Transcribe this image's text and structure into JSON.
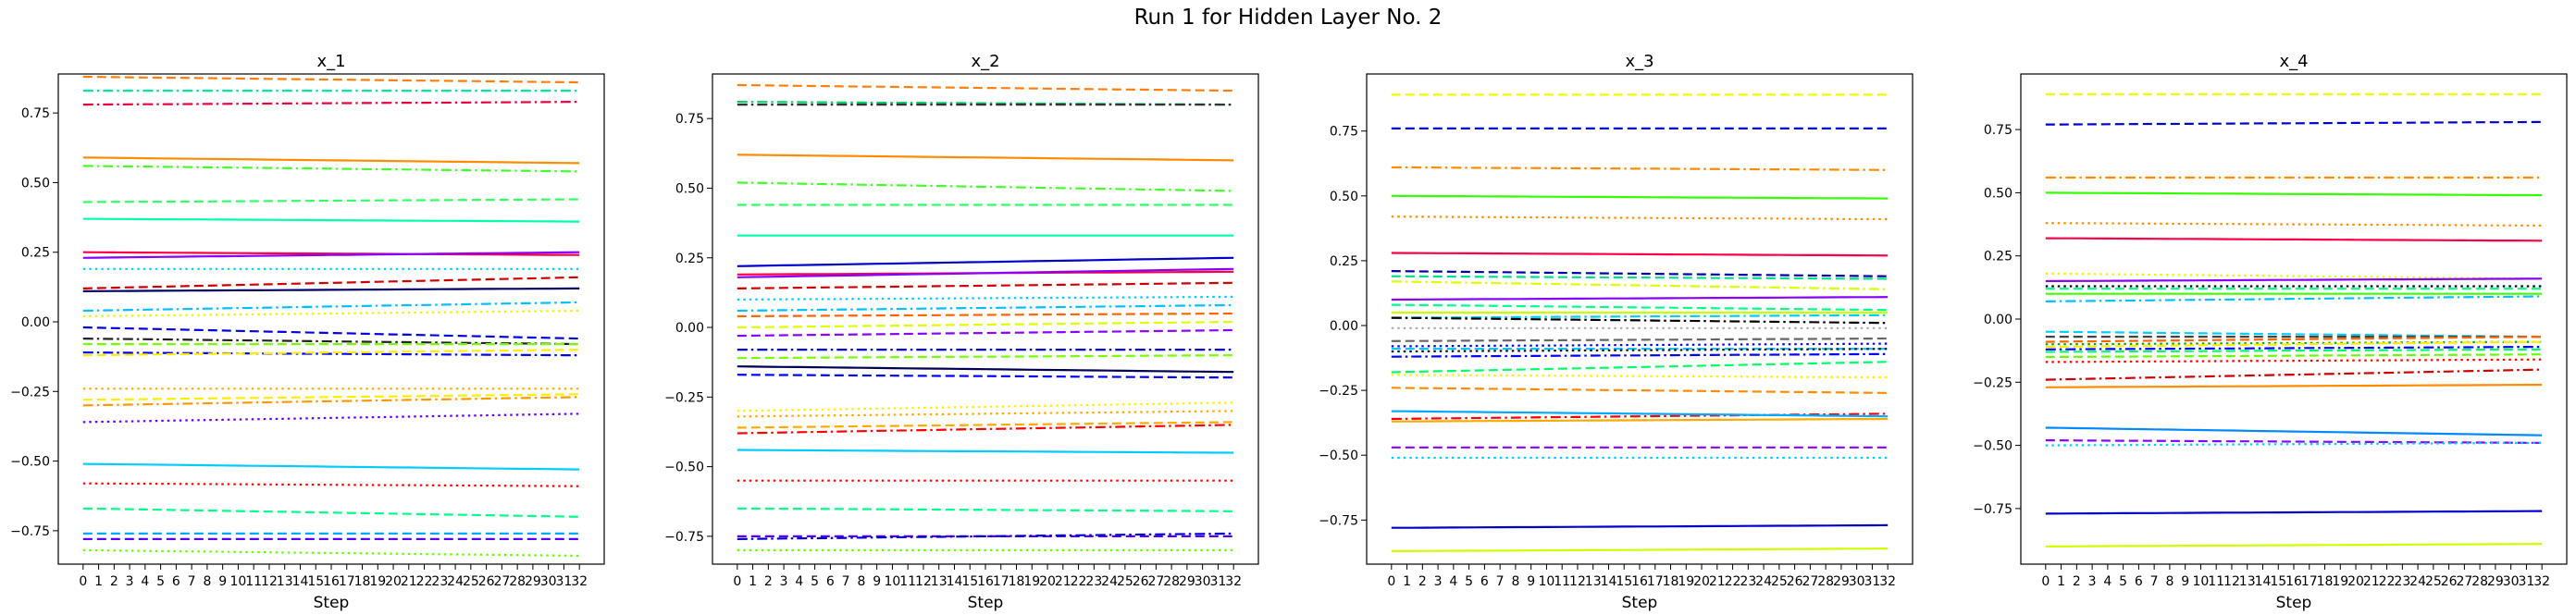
{
  "figure": {
    "title": "Run 1 for Hidden Layer No. 2"
  },
  "chart_data": [
    {
      "type": "line",
      "title": "x_1",
      "xlabel": "Step",
      "ylabel": "",
      "x": [
        0,
        1,
        2,
        3,
        4,
        5,
        6,
        7,
        8,
        9,
        10,
        11,
        12,
        13,
        14,
        15,
        16,
        17,
        18,
        19,
        20,
        21,
        22,
        23,
        24,
        25,
        26,
        27,
        28,
        29,
        30,
        31,
        32
      ],
      "xlim": [
        -1.6,
        33.6
      ],
      "ylim": [
        -0.87,
        0.89
      ],
      "yticks": [
        -0.75,
        -0.5,
        -0.25,
        0.0,
        0.25,
        0.5,
        0.75
      ],
      "ytick_labels": [
        "−0.75",
        "−0.50",
        "−0.25",
        "0.00",
        "0.25",
        "0.50",
        "0.75"
      ],
      "grid": false,
      "series": [
        {
          "color": "#ff7f0e",
          "style": "dashed",
          "start": 0.88,
          "end": 0.86
        },
        {
          "color": "#00e5a0",
          "style": "dashdot",
          "start": 0.83,
          "end": 0.83
        },
        {
          "color": "#e8003c",
          "style": "dashdot",
          "start": 0.78,
          "end": 0.79
        },
        {
          "color": "#ff8c00",
          "style": "solid",
          "start": 0.59,
          "end": 0.57
        },
        {
          "color": "#44ff2a",
          "style": "dashdot",
          "start": 0.56,
          "end": 0.54
        },
        {
          "color": "#33ff66",
          "style": "dashed",
          "start": 0.43,
          "end": 0.44
        },
        {
          "color": "#00ffaa",
          "style": "solid",
          "start": 0.37,
          "end": 0.36
        },
        {
          "color": "#ff0044",
          "style": "solid",
          "start": 0.25,
          "end": 0.24
        },
        {
          "color": "#8800ff",
          "style": "solid",
          "start": 0.23,
          "end": 0.25
        },
        {
          "color": "#00ccff",
          "style": "dotted",
          "start": 0.19,
          "end": 0.19
        },
        {
          "color": "#cc0000",
          "style": "dashed",
          "start": 0.12,
          "end": 0.16
        },
        {
          "color": "#000066",
          "style": "solid",
          "start": 0.11,
          "end": 0.12
        },
        {
          "color": "#00bfff",
          "style": "dashdot",
          "start": 0.04,
          "end": 0.07
        },
        {
          "color": "#ddff00",
          "style": "dotted",
          "start": 0.02,
          "end": 0.04
        },
        {
          "color": "#0000dd",
          "style": "dashed",
          "start": -0.02,
          "end": -0.06
        },
        {
          "color": "#222222",
          "style": "dashdot",
          "start": -0.06,
          "end": -0.08
        },
        {
          "color": "#77ff00",
          "style": "dashed",
          "start": -0.08,
          "end": -0.08
        },
        {
          "color": "#0000ff",
          "style": "dashdot",
          "start": -0.11,
          "end": -0.12
        },
        {
          "color": "#ffee00",
          "style": "dashed",
          "start": -0.12,
          "end": -0.1
        },
        {
          "color": "#ffaa00",
          "style": "dotted",
          "start": -0.24,
          "end": -0.24
        },
        {
          "color": "#ff9900",
          "style": "dashdot",
          "start": -0.3,
          "end": -0.27
        },
        {
          "color": "#ffee00",
          "style": "dashed",
          "start": -0.28,
          "end": -0.26
        },
        {
          "color": "#6600ff",
          "style": "dotted",
          "start": -0.36,
          "end": -0.33
        },
        {
          "color": "#00ccff",
          "style": "solid",
          "start": -0.51,
          "end": -0.53
        },
        {
          "color": "#ff0000",
          "style": "dotted",
          "start": -0.58,
          "end": -0.59
        },
        {
          "color": "#00ff88",
          "style": "dashed",
          "start": -0.67,
          "end": -0.7
        },
        {
          "color": "#00aaff",
          "style": "dashed",
          "start": -0.76,
          "end": -0.76
        },
        {
          "color": "#5500ff",
          "style": "dashed",
          "start": -0.78,
          "end": -0.78
        },
        {
          "color": "#66ff00",
          "style": "dotted",
          "start": -0.82,
          "end": -0.84
        }
      ]
    },
    {
      "type": "line",
      "title": "x_2",
      "xlabel": "Step",
      "ylabel": "",
      "x": [
        0,
        1,
        2,
        3,
        4,
        5,
        6,
        7,
        8,
        9,
        10,
        11,
        12,
        13,
        14,
        15,
        16,
        17,
        18,
        19,
        20,
        21,
        22,
        23,
        24,
        25,
        26,
        27,
        28,
        29,
        30,
        31,
        32
      ],
      "xlim": [
        -1.6,
        33.6
      ],
      "ylim": [
        -0.85,
        0.91
      ],
      "yticks": [
        -0.75,
        -0.5,
        -0.25,
        0.0,
        0.25,
        0.5,
        0.75
      ],
      "ytick_labels": [
        "−0.75",
        "−0.50",
        "−0.25",
        "0.00",
        "0.25",
        "0.50",
        "0.75"
      ],
      "grid": false,
      "series": [
        {
          "color": "#ff7f0e",
          "style": "dashed",
          "start": 0.87,
          "end": 0.85
        },
        {
          "color": "#00cc66",
          "style": "dashdot",
          "start": 0.81,
          "end": 0.8
        },
        {
          "color": "#333333",
          "style": "dashdot",
          "start": 0.8,
          "end": 0.8
        },
        {
          "color": "#ff8c00",
          "style": "solid",
          "start": 0.62,
          "end": 0.6
        },
        {
          "color": "#44ff2a",
          "style": "dashdot",
          "start": 0.52,
          "end": 0.49
        },
        {
          "color": "#33ff66",
          "style": "dashed",
          "start": 0.44,
          "end": 0.44
        },
        {
          "color": "#00ffaa",
          "style": "solid",
          "start": 0.33,
          "end": 0.33
        },
        {
          "color": "#0000cc",
          "style": "solid",
          "start": 0.22,
          "end": 0.25
        },
        {
          "color": "#ff0044",
          "style": "solid",
          "start": 0.19,
          "end": 0.2
        },
        {
          "color": "#8800ff",
          "style": "solid",
          "start": 0.18,
          "end": 0.21
        },
        {
          "color": "#cc0000",
          "style": "dashed",
          "start": 0.14,
          "end": 0.16
        },
        {
          "color": "#00ccff",
          "style": "dotted",
          "start": 0.1,
          "end": 0.11
        },
        {
          "color": "#00bfff",
          "style": "dashdot",
          "start": 0.06,
          "end": 0.08
        },
        {
          "color": "#ff6600",
          "style": "dashed",
          "start": 0.04,
          "end": 0.05
        },
        {
          "color": "#ddff00",
          "style": "dashed",
          "start": 0.0,
          "end": 0.02
        },
        {
          "color": "#8800ff",
          "style": "dashed",
          "start": -0.03,
          "end": -0.01
        },
        {
          "color": "#0000dd",
          "style": "dashdot",
          "start": -0.08,
          "end": -0.08
        },
        {
          "color": "#77ff00",
          "style": "dashed",
          "start": -0.11,
          "end": -0.1
        },
        {
          "color": "#000055",
          "style": "solid",
          "start": -0.14,
          "end": -0.16
        },
        {
          "color": "#0000ff",
          "style": "dashed",
          "start": -0.17,
          "end": -0.18
        },
        {
          "color": "#ffee00",
          "style": "dotted",
          "start": -0.3,
          "end": -0.27
        },
        {
          "color": "#ffaa00",
          "style": "dotted",
          "start": -0.32,
          "end": -0.3
        },
        {
          "color": "#ff0000",
          "style": "dashdot",
          "start": -0.38,
          "end": -0.35
        },
        {
          "color": "#ffaa00",
          "style": "dashed",
          "start": -0.36,
          "end": -0.34
        },
        {
          "color": "#00ccff",
          "style": "solid",
          "start": -0.44,
          "end": -0.45
        },
        {
          "color": "#ff0000",
          "style": "dotted",
          "start": -0.55,
          "end": -0.55
        },
        {
          "color": "#00ff88",
          "style": "dashed",
          "start": -0.65,
          "end": -0.66
        },
        {
          "color": "#5500ff",
          "style": "dashed",
          "start": -0.75,
          "end": -0.75
        },
        {
          "color": "#0000cc",
          "style": "dashdot",
          "start": -0.76,
          "end": -0.74
        },
        {
          "color": "#66ff00",
          "style": "dotted",
          "start": -0.8,
          "end": -0.8
        }
      ]
    },
    {
      "type": "line",
      "title": "x_3",
      "xlabel": "Step",
      "ylabel": "",
      "x": [
        0,
        1,
        2,
        3,
        4,
        5,
        6,
        7,
        8,
        9,
        10,
        11,
        12,
        13,
        14,
        15,
        16,
        17,
        18,
        19,
        20,
        21,
        22,
        23,
        24,
        25,
        26,
        27,
        28,
        29,
        30,
        31,
        32
      ],
      "xlim": [
        -1.6,
        33.6
      ],
      "ylim": [
        -0.92,
        0.97
      ],
      "yticks": [
        -0.75,
        -0.5,
        -0.25,
        0.0,
        0.25,
        0.5,
        0.75
      ],
      "ytick_labels": [
        "−0.75",
        "−0.50",
        "−0.25",
        "0.00",
        "0.25",
        "0.50",
        "0.75"
      ],
      "grid": false,
      "series": [
        {
          "color": "#eeff00",
          "style": "dashed",
          "start": 0.89,
          "end": 0.89
        },
        {
          "color": "#0000cc",
          "style": "dashed",
          "start": 0.76,
          "end": 0.76
        },
        {
          "color": "#ff8c00",
          "style": "dashdot",
          "start": 0.61,
          "end": 0.6
        },
        {
          "color": "#33ff00",
          "style": "solid",
          "start": 0.5,
          "end": 0.49
        },
        {
          "color": "#ff8c00",
          "style": "dotted",
          "start": 0.42,
          "end": 0.41
        },
        {
          "color": "#ff0044",
          "style": "solid",
          "start": 0.28,
          "end": 0.27
        },
        {
          "color": "#0000aa",
          "style": "dashed",
          "start": 0.21,
          "end": 0.19
        },
        {
          "color": "#00dd88",
          "style": "dashed",
          "start": 0.19,
          "end": 0.18
        },
        {
          "color": "#ddff00",
          "style": "dashdot",
          "start": 0.17,
          "end": 0.14
        },
        {
          "color": "#8800ff",
          "style": "solid",
          "start": 0.1,
          "end": 0.11
        },
        {
          "color": "#00ff88",
          "style": "dashed",
          "start": 0.08,
          "end": 0.06
        },
        {
          "color": "#ccff00",
          "style": "solid",
          "start": 0.05,
          "end": 0.05
        },
        {
          "color": "#00ccff",
          "style": "dashdot",
          "start": 0.03,
          "end": 0.04
        },
        {
          "color": "#000000",
          "style": "dashdot",
          "start": 0.03,
          "end": 0.01
        },
        {
          "color": "#aaaaaa",
          "style": "dotted",
          "start": -0.01,
          "end": -0.01
        },
        {
          "color": "#666666",
          "style": "dashed",
          "start": -0.06,
          "end": -0.05
        },
        {
          "color": "#0000ff",
          "style": "dotted",
          "start": -0.08,
          "end": -0.07
        },
        {
          "color": "#00bfff",
          "style": "dashed",
          "start": -0.09,
          "end": -0.09
        },
        {
          "color": "#111111",
          "style": "dotted",
          "start": -0.1,
          "end": -0.09
        },
        {
          "color": "#0000ff",
          "style": "dashdot",
          "start": -0.12,
          "end": -0.11
        },
        {
          "color": "#00ff66",
          "style": "dashed",
          "start": -0.18,
          "end": -0.14
        },
        {
          "color": "#ffee00",
          "style": "dotted",
          "start": -0.19,
          "end": -0.2
        },
        {
          "color": "#ff8c00",
          "style": "dashed",
          "start": -0.24,
          "end": -0.26
        },
        {
          "color": "#ff0000",
          "style": "dashdot",
          "start": -0.36,
          "end": -0.34
        },
        {
          "color": "#00aaff",
          "style": "solid",
          "start": -0.33,
          "end": -0.35
        },
        {
          "color": "#ffaa00",
          "style": "solid",
          "start": -0.37,
          "end": -0.36
        },
        {
          "color": "#8800ff",
          "style": "dashed",
          "start": -0.47,
          "end": -0.47
        },
        {
          "color": "#00ccff",
          "style": "dotted",
          "start": -0.51,
          "end": -0.51
        },
        {
          "color": "#0000cc",
          "style": "solid",
          "start": -0.78,
          "end": -0.77
        },
        {
          "color": "#ccff00",
          "style": "solid",
          "start": -0.87,
          "end": -0.86
        }
      ]
    },
    {
      "type": "line",
      "title": "x_4",
      "xlabel": "Step",
      "ylabel": "",
      "x": [
        0,
        1,
        2,
        3,
        4,
        5,
        6,
        7,
        8,
        9,
        10,
        11,
        12,
        13,
        14,
        15,
        16,
        17,
        18,
        19,
        20,
        21,
        22,
        23,
        24,
        25,
        26,
        27,
        28,
        29,
        30,
        31,
        32
      ],
      "xlim": [
        -1.6,
        33.6
      ],
      "ylim": [
        -0.97,
        0.97
      ],
      "yticks": [
        -0.75,
        -0.5,
        -0.25,
        0.0,
        0.25,
        0.5,
        0.75
      ],
      "ytick_labels": [
        "−0.75",
        "−0.50",
        "−0.25",
        "0.00",
        "0.25",
        "0.50",
        "0.75"
      ],
      "grid": false,
      "series": [
        {
          "color": "#eeff00",
          "style": "dashed",
          "start": 0.89,
          "end": 0.89
        },
        {
          "color": "#0000cc",
          "style": "dashed",
          "start": 0.77,
          "end": 0.78
        },
        {
          "color": "#ff8c00",
          "style": "dashdot",
          "start": 0.56,
          "end": 0.56
        },
        {
          "color": "#33ff00",
          "style": "solid",
          "start": 0.5,
          "end": 0.49
        },
        {
          "color": "#ff8c00",
          "style": "dotted",
          "start": 0.38,
          "end": 0.37
        },
        {
          "color": "#ff0044",
          "style": "solid",
          "start": 0.32,
          "end": 0.31
        },
        {
          "color": "#ddff00",
          "style": "dotted",
          "start": 0.18,
          "end": 0.16
        },
        {
          "color": "#8800ff",
          "style": "solid",
          "start": 0.15,
          "end": 0.16
        },
        {
          "color": "#000000",
          "style": "dotted",
          "start": 0.13,
          "end": 0.13
        },
        {
          "color": "#00ff88",
          "style": "dashed",
          "start": 0.12,
          "end": 0.12
        },
        {
          "color": "#44ff00",
          "style": "solid",
          "start": 0.1,
          "end": 0.1
        },
        {
          "color": "#00bfff",
          "style": "dashdot",
          "start": 0.07,
          "end": 0.09
        },
        {
          "color": "#00ccff",
          "style": "dashed",
          "start": -0.05,
          "end": -0.07
        },
        {
          "color": "#444444",
          "style": "dashed",
          "start": -0.07,
          "end": -0.07
        },
        {
          "color": "#ff6600",
          "style": "dashed",
          "start": -0.09,
          "end": -0.07
        },
        {
          "color": "#00aa00",
          "style": "dotted",
          "start": -0.1,
          "end": -0.09
        },
        {
          "color": "#ffee00",
          "style": "dashed",
          "start": -0.11,
          "end": -0.09
        },
        {
          "color": "#0000ff",
          "style": "dashdot",
          "start": -0.12,
          "end": -0.11
        },
        {
          "color": "#00ff66",
          "style": "dashed",
          "start": -0.13,
          "end": -0.12
        },
        {
          "color": "#66ff00",
          "style": "dashed",
          "start": -0.15,
          "end": -0.14
        },
        {
          "color": "#ff0000",
          "style": "dotted",
          "start": -0.17,
          "end": -0.16
        },
        {
          "color": "#cc0000",
          "style": "dashdot",
          "start": -0.24,
          "end": -0.2
        },
        {
          "color": "#ff8c00",
          "style": "solid",
          "start": -0.27,
          "end": -0.26
        },
        {
          "color": "#0088ff",
          "style": "solid",
          "start": -0.43,
          "end": -0.46
        },
        {
          "color": "#8800ff",
          "style": "dashed",
          "start": -0.48,
          "end": -0.49
        },
        {
          "color": "#00ccff",
          "style": "dotted",
          "start": -0.5,
          "end": -0.49
        },
        {
          "color": "#0000cc",
          "style": "solid",
          "start": -0.77,
          "end": -0.76
        },
        {
          "color": "#ccff00",
          "style": "solid",
          "start": -0.9,
          "end": -0.89
        }
      ]
    }
  ]
}
